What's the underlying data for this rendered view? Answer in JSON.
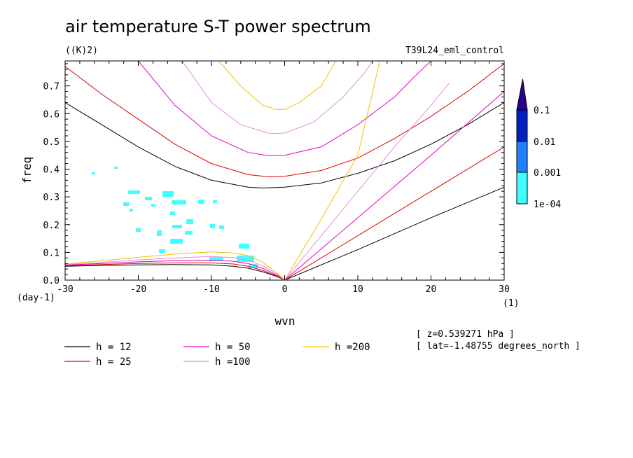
{
  "header": {
    "title": "air temperature S-T power spectrum",
    "units": "((K)2)",
    "experiment": "T39L24_eml_control"
  },
  "info": {
    "level": "[ z=0.539271 hPa ]",
    "latitude": "[ lat=-1.48755 degrees_north ]"
  },
  "colorbar": {
    "colors": [
      "#40ffff",
      "#2080ff",
      "#0020c0",
      "#2a0090"
    ],
    "labels": [
      "1e-04",
      "0.001",
      "0.01",
      "0.1"
    ]
  },
  "chart_data": {
    "type": "line",
    "title": "air temperature S-T power spectrum",
    "xlabel": "wvn",
    "ylabel": "freq",
    "x_unit": "(1)",
    "y_unit": "(day-1)",
    "xlim": [
      -30,
      30
    ],
    "ylim": [
      0,
      0.79
    ],
    "xticks": [
      "-30",
      "-20",
      "-10",
      "0",
      "10",
      "20",
      "30"
    ],
    "yticks": [
      "0.0",
      "0.1",
      "0.2",
      "0.3",
      "0.4",
      "0.5",
      "0.6",
      "0.7"
    ],
    "grid": false,
    "legend_placement": "bottom",
    "series": [
      {
        "name": "h = 12",
        "color": "#000000",
        "low_branch": [
          [
            -30,
            0.05
          ],
          [
            -25,
            0.053
          ],
          [
            -20,
            0.055
          ],
          [
            -15,
            0.056
          ],
          [
            -10,
            0.055
          ],
          [
            -7,
            0.05
          ],
          [
            -5,
            0.043
          ],
          [
            -3,
            0.03
          ],
          [
            -1,
            0.012
          ],
          [
            0,
            0
          ]
        ],
        "high_branch": [
          [
            -30,
            0.64
          ],
          [
            -25,
            0.56
          ],
          [
            -20,
            0.48
          ],
          [
            -15,
            0.41
          ],
          [
            -10,
            0.36
          ],
          [
            -5,
            0.335
          ],
          [
            -3,
            0.332
          ],
          [
            0,
            0.335
          ],
          [
            5,
            0.35
          ],
          [
            10,
            0.385
          ],
          [
            15,
            0.43
          ],
          [
            20,
            0.49
          ],
          [
            25,
            0.56
          ],
          [
            30,
            0.64
          ]
        ],
        "kelvin": [
          [
            0,
            0
          ],
          [
            10,
            0.11
          ],
          [
            20,
            0.225
          ],
          [
            30,
            0.335
          ]
        ]
      },
      {
        "name": "h = 25",
        "color": "#e00000",
        "low_branch": [
          [
            -30,
            0.052
          ],
          [
            -25,
            0.056
          ],
          [
            -20,
            0.06
          ],
          [
            -15,
            0.062
          ],
          [
            -10,
            0.062
          ],
          [
            -7,
            0.058
          ],
          [
            -5,
            0.05
          ],
          [
            -3,
            0.035
          ],
          [
            -1,
            0.014
          ],
          [
            0,
            0
          ]
        ],
        "high_branch": [
          [
            -30,
            0.77
          ],
          [
            -25,
            0.67
          ],
          [
            -20,
            0.58
          ],
          [
            -15,
            0.49
          ],
          [
            -10,
            0.42
          ],
          [
            -5,
            0.38
          ],
          [
            -2,
            0.372
          ],
          [
            0,
            0.374
          ],
          [
            5,
            0.395
          ],
          [
            10,
            0.44
          ],
          [
            15,
            0.51
          ],
          [
            20,
            0.59
          ],
          [
            25,
            0.68
          ],
          [
            30,
            0.78
          ]
        ],
        "kelvin": [
          [
            0,
            0
          ],
          [
            10,
            0.16
          ],
          [
            20,
            0.32
          ],
          [
            30,
            0.48
          ]
        ]
      },
      {
        "name": "h = 50",
        "color": "#e000c0",
        "low_branch": [
          [
            -30,
            0.054
          ],
          [
            -25,
            0.06
          ],
          [
            -20,
            0.066
          ],
          [
            -15,
            0.07
          ],
          [
            -10,
            0.072
          ],
          [
            -7,
            0.068
          ],
          [
            -5,
            0.06
          ],
          [
            -3,
            0.043
          ],
          [
            -1,
            0.017
          ],
          [
            0,
            0
          ]
        ],
        "high_branch": [
          [
            -20,
            0.79
          ],
          [
            -15,
            0.63
          ],
          [
            -10,
            0.52
          ],
          [
            -5,
            0.46
          ],
          [
            -2,
            0.448
          ],
          [
            0,
            0.45
          ],
          [
            5,
            0.48
          ],
          [
            10,
            0.56
          ],
          [
            15,
            0.66
          ],
          [
            18,
            0.74
          ],
          [
            20,
            0.79
          ]
        ],
        "kelvin": [
          [
            0,
            0
          ],
          [
            10,
            0.225
          ],
          [
            20,
            0.45
          ],
          [
            30,
            0.68
          ]
        ]
      },
      {
        "name": "h =100",
        "color": "#e48ce4",
        "low_branch": [
          [
            -30,
            0.056
          ],
          [
            -25,
            0.064
          ],
          [
            -20,
            0.073
          ],
          [
            -15,
            0.08
          ],
          [
            -10,
            0.085
          ],
          [
            -7,
            0.081
          ],
          [
            -5,
            0.072
          ],
          [
            -3,
            0.052
          ],
          [
            -1,
            0.021
          ],
          [
            0,
            0
          ]
        ],
        "high_branch": [
          [
            -14,
            0.79
          ],
          [
            -10,
            0.64
          ],
          [
            -6,
            0.56
          ],
          [
            -2,
            0.528
          ],
          [
            0,
            0.53
          ],
          [
            4,
            0.57
          ],
          [
            8,
            0.66
          ],
          [
            11,
            0.75
          ],
          [
            12,
            0.79
          ]
        ],
        "kelvin": [
          [
            0,
            0
          ],
          [
            5,
            0.16
          ],
          [
            10,
            0.32
          ],
          [
            15,
            0.48
          ],
          [
            20,
            0.63
          ],
          [
            22.5,
            0.71
          ]
        ]
      },
      {
        "name": "h =200",
        "color": "#f0c000",
        "low_branch": [
          [
            -30,
            0.058
          ],
          [
            -25,
            0.07
          ],
          [
            -20,
            0.082
          ],
          [
            -15,
            0.094
          ],
          [
            -10,
            0.102
          ],
          [
            -7,
            0.098
          ],
          [
            -5,
            0.088
          ],
          [
            -3,
            0.064
          ],
          [
            -1,
            0.025
          ],
          [
            0,
            0
          ]
        ],
        "high_branch": [
          [
            -9,
            0.79
          ],
          [
            -6,
            0.7
          ],
          [
            -3,
            0.63
          ],
          [
            -1,
            0.614
          ],
          [
            0,
            0.615
          ],
          [
            2,
            0.64
          ],
          [
            5,
            0.7
          ],
          [
            7,
            0.79
          ]
        ],
        "kelvin": [
          [
            0,
            0
          ],
          [
            5,
            0.22
          ],
          [
            10,
            0.45
          ],
          [
            13,
            0.79
          ]
        ]
      }
    ]
  }
}
